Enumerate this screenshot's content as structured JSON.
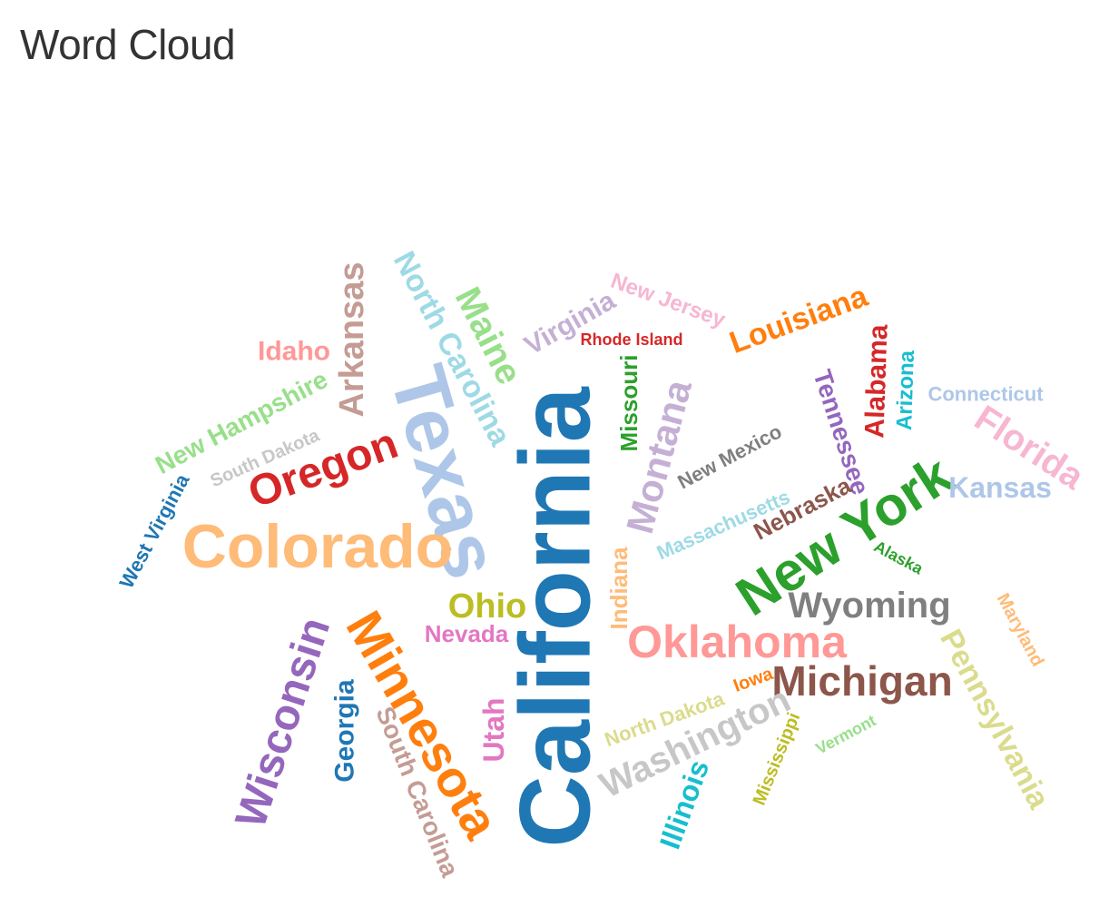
{
  "page": {
    "title": "Word Cloud"
  },
  "chart_data": {
    "type": "wordcloud",
    "words": [
      {
        "text": "California",
        "weight": 100,
        "color": "#1f77b4",
        "rotation": -90
      },
      {
        "text": "Texas",
        "weight": 75,
        "color": "#aec7e8",
        "rotation": 74
      },
      {
        "text": "Minnesota",
        "weight": 62,
        "color": "#ff7f0e",
        "rotation": 60
      },
      {
        "text": "Colorado",
        "weight": 58,
        "color": "#ffbb78",
        "rotation": 0
      },
      {
        "text": "New York",
        "weight": 56,
        "color": "#2ca02c",
        "rotation": -33
      },
      {
        "text": "Oklahoma",
        "weight": 48,
        "color": "#ff9896",
        "rotation": 0
      },
      {
        "text": "Michigan",
        "weight": 46,
        "color": "#8c564b",
        "rotation": 0
      },
      {
        "text": "Wisconsin",
        "weight": 46,
        "color": "#9467bd",
        "rotation": -72
      },
      {
        "text": "Washington",
        "weight": 44,
        "color": "#c7c7c7",
        "rotation": -26
      },
      {
        "text": "Montana",
        "weight": 44,
        "color": "#c5b0d5",
        "rotation": -75
      },
      {
        "text": "Oregon",
        "weight": 42,
        "color": "#d62728",
        "rotation": -20
      },
      {
        "text": "Maine",
        "weight": 40,
        "color": "#98df8a",
        "rotation": 63
      },
      {
        "text": "Pennsylvania",
        "weight": 38,
        "color": "#dbdb8d",
        "rotation": 62
      },
      {
        "text": "Wyoming",
        "weight": 36,
        "color": "#7f7f7f",
        "rotation": 0
      },
      {
        "text": "Florida",
        "weight": 36,
        "color": "#f7b6d2",
        "rotation": 33
      },
      {
        "text": "Arkansas",
        "weight": 36,
        "color": "#c49c94",
        "rotation": -90
      },
      {
        "text": "North Carolina",
        "weight": 34,
        "color": "#9edae5",
        "rotation": 62
      },
      {
        "text": "Louisiana",
        "weight": 32,
        "color": "#ff7f0e",
        "rotation": -20
      },
      {
        "text": "Ohio",
        "weight": 32,
        "color": "#bcbd22",
        "rotation": 0
      },
      {
        "text": "Illinois",
        "weight": 32,
        "color": "#17becf",
        "rotation": -70
      },
      {
        "text": "Kansas",
        "weight": 30,
        "color": "#aec7e8",
        "rotation": 0
      },
      {
        "text": "Utah",
        "weight": 30,
        "color": "#e377c2",
        "rotation": -90
      },
      {
        "text": "Georgia",
        "weight": 28,
        "color": "#1f77b4",
        "rotation": -90
      },
      {
        "text": "New Hampshire",
        "weight": 28,
        "color": "#98df8a",
        "rotation": -28
      },
      {
        "text": "South Carolina",
        "weight": 28,
        "color": "#c49c94",
        "rotation": 68
      },
      {
        "text": "Virginia",
        "weight": 28,
        "color": "#c5b0d5",
        "rotation": -30
      },
      {
        "text": "Idaho",
        "weight": 28,
        "color": "#ff9896",
        "rotation": 0
      },
      {
        "text": "Tennessee",
        "weight": 28,
        "color": "#9467bd",
        "rotation": 72
      },
      {
        "text": "Alabama",
        "weight": 28,
        "color": "#d62728",
        "rotation": -88
      },
      {
        "text": "Indiana",
        "weight": 26,
        "color": "#ffbb78",
        "rotation": -90
      },
      {
        "text": "Nebraska",
        "weight": 26,
        "color": "#8c564b",
        "rotation": -28
      },
      {
        "text": "Missouri",
        "weight": 26,
        "color": "#2ca02c",
        "rotation": -90
      },
      {
        "text": "New Jersey",
        "weight": 24,
        "color": "#f7b6d2",
        "rotation": 20
      },
      {
        "text": "Nevada",
        "weight": 24,
        "color": "#e377c2",
        "rotation": 0
      },
      {
        "text": "North Dakota",
        "weight": 24,
        "color": "#dbdb8d",
        "rotation": -20
      },
      {
        "text": "Massachusetts",
        "weight": 24,
        "color": "#9edae5",
        "rotation": -24
      },
      {
        "text": "Arizona",
        "weight": 24,
        "color": "#17becf",
        "rotation": -88
      },
      {
        "text": "West Virginia",
        "weight": 24,
        "color": "#1f77b4",
        "rotation": -62
      },
      {
        "text": "Maryland",
        "weight": 22,
        "color": "#ffbb78",
        "rotation": 62
      },
      {
        "text": "New Mexico",
        "weight": 22,
        "color": "#7f7f7f",
        "rotation": -28
      },
      {
        "text": "Mississippi",
        "weight": 22,
        "color": "#bcbd22",
        "rotation": -68
      },
      {
        "text": "South Dakota",
        "weight": 22,
        "color": "#c7c7c7",
        "rotation": -24
      },
      {
        "text": "Connecticut",
        "weight": 22,
        "color": "#aec7e8",
        "rotation": 0
      },
      {
        "text": "Iowa",
        "weight": 22,
        "color": "#ff7f0e",
        "rotation": -20
      },
      {
        "text": "Rhode Island",
        "weight": 20,
        "color": "#d62728",
        "rotation": 0
      },
      {
        "text": "Alaska",
        "weight": 20,
        "color": "#2ca02c",
        "rotation": 28
      },
      {
        "text": "Vermont",
        "weight": 20,
        "color": "#98df8a",
        "rotation": -28
      }
    ]
  }
}
